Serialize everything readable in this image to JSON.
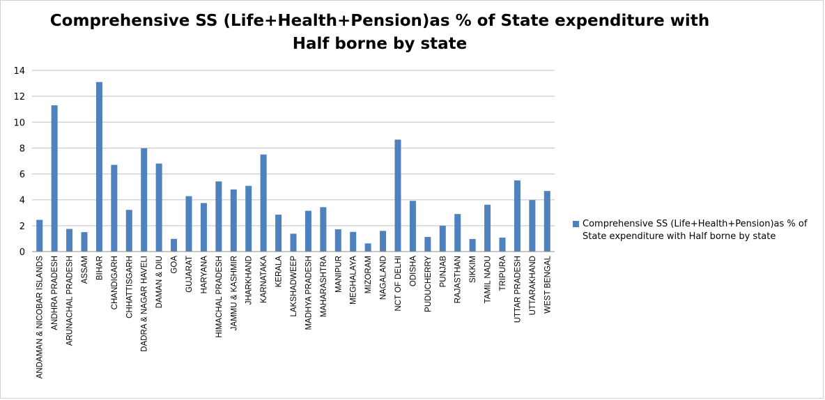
{
  "chart_data": {
    "type": "bar",
    "title": "Comprehensive SS (Life+Health+Pension)as % of State expenditure with Half borne by state",
    "title_lines": [
      "Comprehensive SS (Life+Health+Pension)as % of State expenditure with",
      "Half borne by state"
    ],
    "xlabel": "",
    "ylabel": "",
    "ylim": [
      0,
      14
    ],
    "yticks": [
      0,
      2,
      4,
      6,
      8,
      10,
      12,
      14
    ],
    "grid": true,
    "legend_position": "right",
    "bar_color": "#4f81bd",
    "categories": [
      "ANDAMAN & NICOBAR ISLANDS",
      "ANDHRA PRADESH",
      "ARUNACHAL PRADESH",
      "ASSAM",
      "BIHAR",
      "CHANDIGARH",
      "CHHATTISGARH",
      "DADRA & NAGAR HAVELI",
      "DAMAN & DIU",
      "GOA",
      "GUJARAT",
      "HARYANA",
      "HIMACHAL PRADESH",
      "JAMMU & KASHMIR",
      "JHARKHAND",
      "KARNATAKA",
      "KERALA",
      "LAKSHADWEEP",
      "MADHYA PRADESH",
      "MAHARASHTRA",
      "MANIPUR",
      "MEGHALAYA",
      "MIZORAM",
      "NAGALAND",
      "NCT OF DELHI",
      "ODISHA",
      "PUDUCHERRY",
      "PUNJAB",
      "RAJASTHAN",
      "SIKKIM",
      "TAMIL NADU",
      "TRIPURA",
      "UTTAR PRADESH",
      "UTTARAKHAND",
      "WEST BENGAL"
    ],
    "series": [
      {
        "name": "Comprehensive SS (Life+Health+Pension)as % of State expenditure with Half borne by state",
        "legend_lines": [
          "Comprehensive SS (Life+Health+Pension)as % of",
          "State expenditure with Half borne by state"
        ],
        "values": [
          2.45,
          11.3,
          1.75,
          1.5,
          13.1,
          6.7,
          3.22,
          7.98,
          6.8,
          0.98,
          4.28,
          3.75,
          5.42,
          4.8,
          5.08,
          7.5,
          2.85,
          1.38,
          3.15,
          3.43,
          1.72,
          1.52,
          0.63,
          1.6,
          8.65,
          3.92,
          1.13,
          2.0,
          2.9,
          0.97,
          3.62,
          1.08,
          5.5,
          3.98,
          4.68
        ]
      }
    ]
  }
}
